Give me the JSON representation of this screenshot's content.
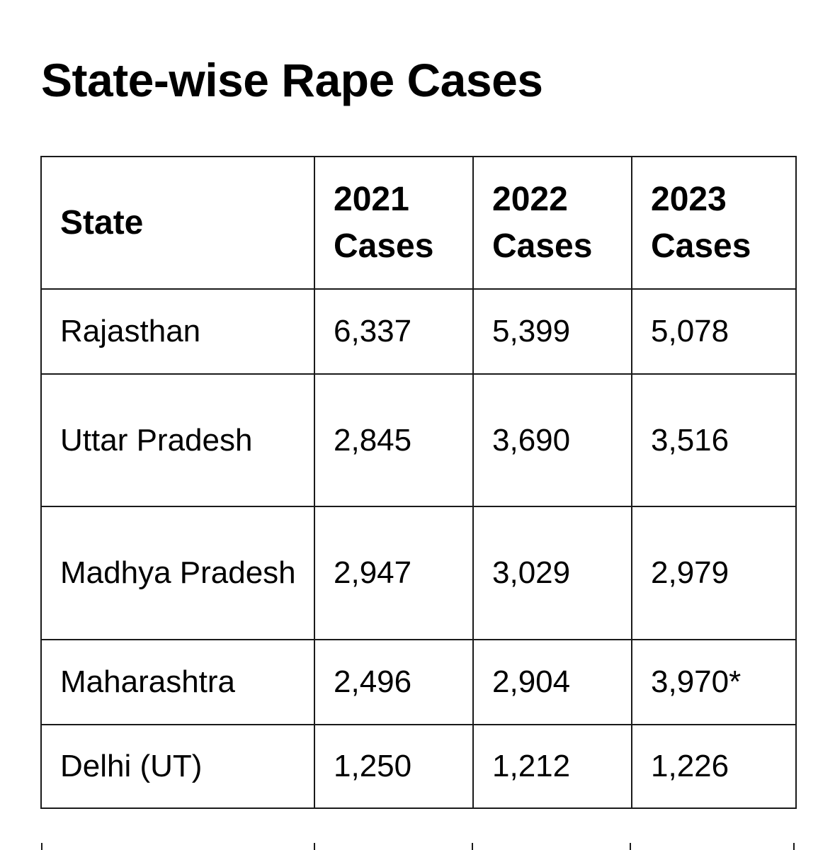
{
  "title": "State-wise Rape Cases",
  "table": {
    "headers": [
      "State",
      "2021 Cases",
      "2022 Cases",
      "2023 Cases"
    ],
    "rows": [
      [
        "Rajasthan",
        "6,337",
        "5,399",
        "5,078"
      ],
      [
        "Uttar Pradesh",
        "2,845",
        "3,690",
        "3,516"
      ],
      [
        "Madhya Pradesh",
        "2,947",
        "3,029",
        "2,979"
      ],
      [
        "Maharashtra",
        "2,496",
        "2,904",
        "3,970*"
      ],
      [
        "Delhi (UT)",
        "1,250",
        "1,212",
        "1,226"
      ]
    ]
  },
  "chart_data": {
    "type": "table",
    "title": "State-wise Rape Cases",
    "columns": [
      "State",
      "2021 Cases",
      "2022 Cases",
      "2023 Cases"
    ],
    "rows": [
      {
        "State": "Rajasthan",
        "2021 Cases": 6337,
        "2022 Cases": 5399,
        "2023 Cases": 5078
      },
      {
        "State": "Uttar Pradesh",
        "2021 Cases": 2845,
        "2022 Cases": 3690,
        "2023 Cases": 3516
      },
      {
        "State": "Madhya Pradesh",
        "2021 Cases": 2947,
        "2022 Cases": 3029,
        "2023 Cases": 2979
      },
      {
        "State": "Maharashtra",
        "2021 Cases": 2496,
        "2022 Cases": 2904,
        "2023 Cases": "3,970*"
      },
      {
        "State": "Delhi (UT)",
        "2021 Cases": 1250,
        "2022 Cases": 1212,
        "2023 Cases": 1226
      }
    ]
  },
  "colors": {
    "background": "#ffffff",
    "text": "#000000",
    "border": "#1a1a1a"
  }
}
